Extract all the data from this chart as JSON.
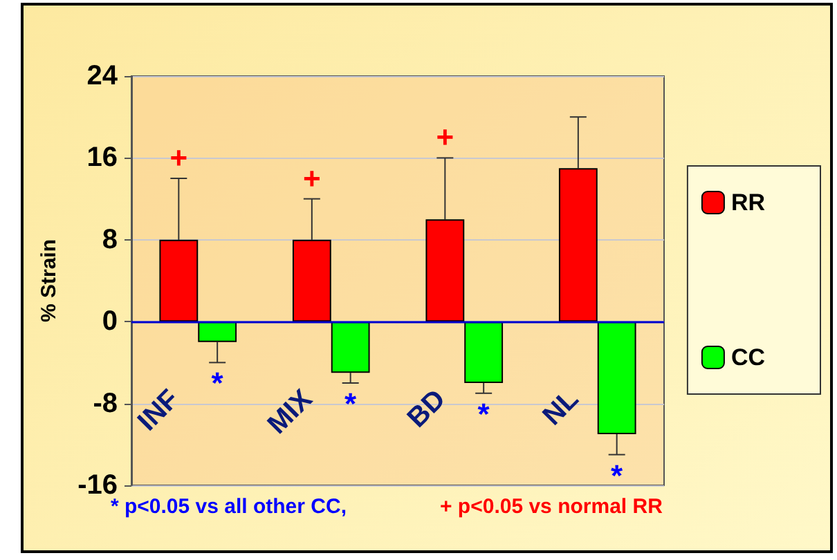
{
  "chart_data": {
    "type": "bar",
    "ylabel": "% Strain",
    "categories": [
      "INF",
      "MIX",
      "BD",
      "NL"
    ],
    "series": [
      {
        "name": "RR",
        "color": "#ff0000",
        "values": [
          8,
          8,
          10,
          15
        ],
        "errors": [
          [
            8,
            14
          ],
          [
            8,
            12
          ],
          [
            10,
            16
          ],
          [
            15,
            20
          ]
        ],
        "value_labels": [
          "+",
          "+",
          "+",
          null
        ]
      },
      {
        "name": "CC",
        "color": "#00ff00",
        "values": [
          -2,
          -5,
          -6,
          -11
        ],
        "errors": [
          [
            -4,
            -2
          ],
          [
            -6,
            -5
          ],
          [
            -7,
            -6
          ],
          [
            -13,
            -11
          ]
        ],
        "value_labels": [
          "*",
          "*",
          "*",
          "*"
        ]
      }
    ],
    "ylim": [
      -16,
      24
    ],
    "yticks": [
      -16,
      -8,
      0,
      8,
      16,
      24
    ],
    "grid": "y",
    "legend": "right",
    "ref_lines": [
      {
        "axis": "y",
        "value": 0,
        "color": "#0000cc"
      }
    ],
    "annotations": [
      "* p<0.05 vs all other CC,",
      "+ p<0.05 vs normal RR"
    ]
  }
}
